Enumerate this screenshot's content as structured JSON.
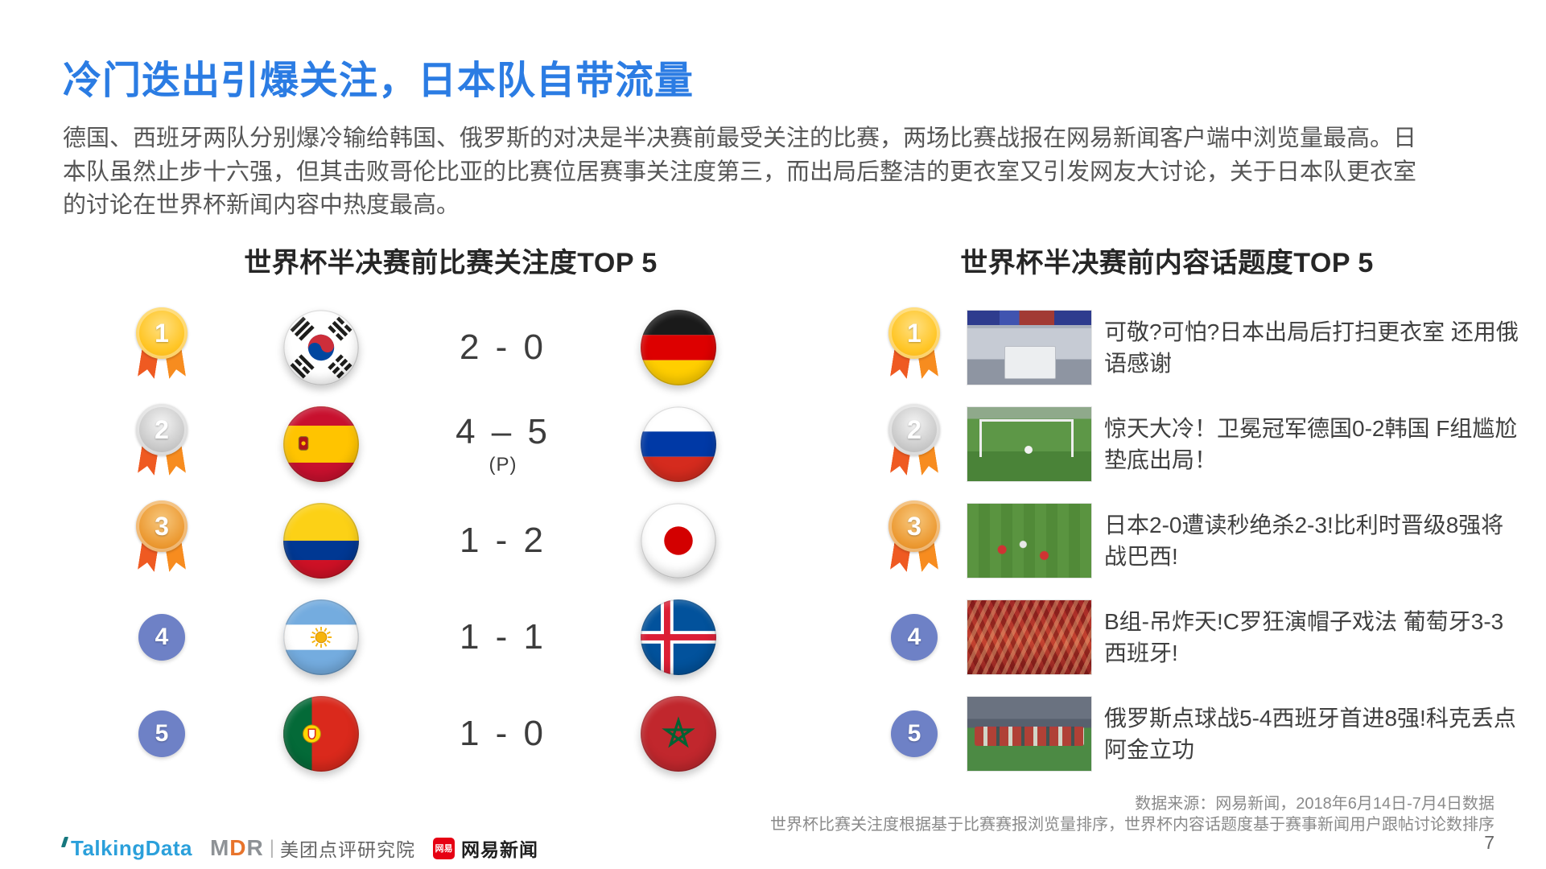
{
  "slide": {
    "title": "冷门迭出引爆关注，日本队自带流量",
    "body_lines": [
      "德国、西班牙两队分别爆冷输给韩国、俄罗斯的对决是半决赛前最受关注的比赛，两场比赛战报在网易新闻客户端中浏览量最高。日",
      "本队虽然止步十六强，但其击败哥伦比亚的比赛位居赛事关注度第三，而出局后整洁的更衣室又引发网友大讨论，关于日本队更衣室",
      "的讨论在世界杯新闻内容中热度最高。"
    ],
    "page_number": "7"
  },
  "left_panel": {
    "header": "世界杯半决赛前比赛关注度TOP 5",
    "rows": [
      {
        "rank": "1",
        "teams": [
          "south-korea",
          "germany"
        ],
        "score": "2 - 0",
        "score_note": ""
      },
      {
        "rank": "2",
        "teams": [
          "spain",
          "russia"
        ],
        "score": "4 – 5",
        "score_note": "(P)"
      },
      {
        "rank": "3",
        "teams": [
          "colombia",
          "japan"
        ],
        "score": "1 - 2",
        "score_note": ""
      },
      {
        "rank": "4",
        "teams": [
          "argentina",
          "iceland"
        ],
        "score": "1 - 1",
        "score_note": ""
      },
      {
        "rank": "5",
        "teams": [
          "portugal",
          "morocco"
        ],
        "score": "1 - 0",
        "score_note": ""
      }
    ]
  },
  "right_panel": {
    "header": "世界杯半决赛前内容话题度TOP 5",
    "rows": [
      {
        "rank": "1",
        "photo": "japan-locker-room",
        "headline": "可敬?可怕?日本出局后打扫更衣室 还用俄语感谢"
      },
      {
        "rank": "2",
        "photo": "germany-korea-match",
        "headline": "惊天大冷！卫冕冠军德国0-2韩国 F组尴尬垫底出局！"
      },
      {
        "rank": "3",
        "photo": "japan-belgium-match",
        "headline": "日本2-0遭读秒绝杀2-3!比利时晋级8强将战巴西!"
      },
      {
        "rank": "4",
        "photo": "portugal-spain-fans",
        "headline": "B组-吊炸天!C罗狂演帽子戏法 葡萄牙3-3西班牙!"
      },
      {
        "rank": "5",
        "photo": "russia-spain-match",
        "headline": "俄罗斯点球战5-4西班牙首进8强!科克丢点阿金立功"
      }
    ]
  },
  "footer": {
    "source_line1": "数据来源：网易新闻，2018年6月14日-7月4日数据",
    "source_line2": "世界杯比赛关注度根据基于比赛赛报浏览量排序，世界杯内容话题度基于赛事新闻用户跟帖讨论数排序",
    "logos": {
      "talkingdata": "TalkingData",
      "mdr_letters": [
        "M",
        "D",
        "R"
      ],
      "mdr_divider": "|",
      "mdr_label": "美团点评研究院",
      "netease_icon_text": "网易",
      "netease": "网易新闻"
    }
  },
  "colors": {
    "title_blue": "#2B7CE3",
    "rank_gold": "#FFC524",
    "rank_silver": "#C9C9C9",
    "rank_bronze": "#EC9A33",
    "rank_plain_blue": "#6E81C6",
    "ribbon_orange": "#F26A21"
  }
}
